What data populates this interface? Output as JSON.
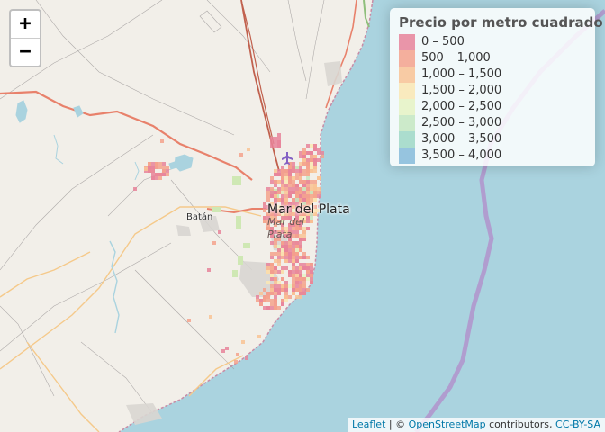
{
  "map": {
    "city_label": "Mar del Plata",
    "city_label_italic": "Mar del Plata",
    "town_label": "Batán"
  },
  "zoom": {
    "in_label": "+",
    "out_label": "−"
  },
  "legend": {
    "title": "Precio por metro cuadrado",
    "items": [
      {
        "label": "0 – 500",
        "color": "#e7849a"
      },
      {
        "label": "500 – 1,000",
        "color": "#f5a28c"
      },
      {
        "label": "1,000 – 1,500",
        "color": "#f9c394"
      },
      {
        "label": "1,500 – 2,000",
        "color": "#fae7b3"
      },
      {
        "label": "2,000 – 2,500",
        "color": "#e6f3c3"
      },
      {
        "label": "2,500 – 3,000",
        "color": "#c5e7c1"
      },
      {
        "label": "3,000 – 3,500",
        "color": "#9fd8c6"
      },
      {
        "label": "3,500 – 4,000",
        "color": "#86bbd9"
      }
    ]
  },
  "attribution": {
    "leaflet": "Leaflet",
    "separator": " | © ",
    "osm": "OpenStreetMap",
    "contributors": " contributors, ",
    "license": "CC-BY-SA"
  },
  "colors": {
    "sea": "#aad3df",
    "land": "#f2efe9",
    "water_boundary": "#b193cc"
  }
}
